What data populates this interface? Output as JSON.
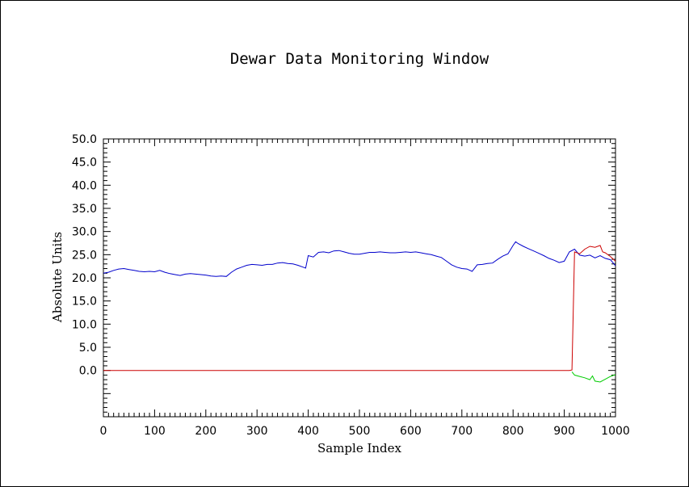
{
  "chart_data": {
    "type": "line",
    "title": "Dewar Data Monitoring Window",
    "xlabel": "Sample Index",
    "ylabel": "Absolute Units",
    "xlim": [
      0,
      1000
    ],
    "ylim": [
      -10,
      50
    ],
    "x_ticks": [
      0,
      100,
      200,
      300,
      400,
      500,
      600,
      700,
      800,
      900,
      1000
    ],
    "y_ticks": [
      "0.0",
      "5.0",
      "10.0",
      "15.0",
      "20.0",
      "25.0",
      "30.0",
      "35.0",
      "40.0",
      "45.0",
      "50.0"
    ],
    "grid": false,
    "colors": {
      "blue": "#0000cc",
      "red": "#cc0000",
      "green": "#00cc00",
      "axis": "#000000"
    },
    "series": [
      {
        "color": "blue",
        "x": [
          0,
          10,
          20,
          30,
          40,
          50,
          60,
          70,
          80,
          90,
          100,
          110,
          120,
          130,
          140,
          150,
          160,
          170,
          180,
          190,
          200,
          210,
          220,
          230,
          240,
          250,
          260,
          270,
          280,
          290,
          300,
          310,
          320,
          330,
          340,
          350,
          360,
          370,
          380,
          390,
          395,
          400,
          410,
          420,
          430,
          440,
          450,
          460,
          470,
          480,
          490,
          500,
          510,
          520,
          530,
          540,
          550,
          560,
          570,
          580,
          590,
          600,
          610,
          620,
          630,
          640,
          650,
          660,
          670,
          680,
          690,
          700,
          710,
          720,
          730,
          740,
          750,
          760,
          770,
          780,
          790,
          800,
          805,
          810,
          820,
          830,
          840,
          850,
          860,
          870,
          880,
          890,
          900,
          910,
          920,
          930,
          940,
          950,
          960,
          970,
          980,
          990,
          1000
        ],
        "y": [
          21.0,
          21.2,
          21.6,
          21.9,
          22.0,
          21.8,
          21.6,
          21.4,
          21.3,
          21.4,
          21.3,
          21.6,
          21.2,
          20.9,
          20.7,
          20.5,
          20.8,
          20.9,
          20.8,
          20.7,
          20.6,
          20.4,
          20.3,
          20.4,
          20.3,
          21.2,
          21.9,
          22.3,
          22.7,
          22.9,
          22.8,
          22.7,
          22.9,
          22.9,
          23.2,
          23.3,
          23.1,
          23.0,
          22.7,
          22.3,
          22.1,
          24.8,
          24.5,
          25.5,
          25.6,
          25.4,
          25.8,
          25.9,
          25.6,
          25.3,
          25.1,
          25.1,
          25.3,
          25.5,
          25.5,
          25.6,
          25.5,
          25.4,
          25.4,
          25.5,
          25.6,
          25.5,
          25.6,
          25.4,
          25.2,
          25.0,
          24.7,
          24.4,
          23.6,
          22.8,
          22.3,
          22.0,
          21.9,
          21.4,
          22.8,
          22.9,
          23.1,
          23.2,
          24.0,
          24.7,
          25.2,
          27.0,
          27.8,
          27.4,
          26.8,
          26.3,
          25.8,
          25.3,
          24.8,
          24.2,
          23.8,
          23.3,
          23.6,
          25.6,
          26.2,
          24.9,
          24.7,
          24.9,
          24.3,
          24.8,
          24.2,
          23.9,
          22.6
        ]
      },
      {
        "color": "red",
        "x": [
          0,
          910,
          915,
          920,
          930,
          940,
          950,
          960,
          970,
          975,
          980,
          990,
          1000
        ],
        "y": [
          0.0,
          0.0,
          0.1,
          25.6,
          25.2,
          26.2,
          26.8,
          26.6,
          27.0,
          25.6,
          25.4,
          24.6,
          23.6
        ]
      },
      {
        "color": "green",
        "x": [
          915,
          920,
          930,
          940,
          950,
          955,
          960,
          970,
          980,
          990,
          1000
        ],
        "y": [
          -0.3,
          -1.0,
          -1.3,
          -1.6,
          -2.0,
          -1.2,
          -2.3,
          -2.5,
          -1.9,
          -1.3,
          -0.9
        ]
      }
    ]
  }
}
